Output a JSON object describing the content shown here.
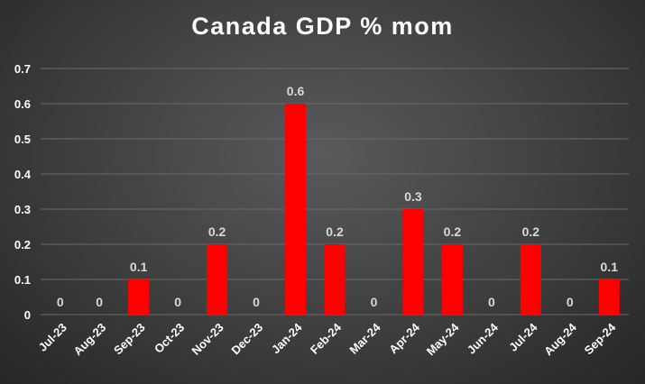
{
  "chart_data": {
    "type": "bar",
    "title": "Canada GDP % mom",
    "xlabel": "",
    "ylabel": "",
    "categories": [
      "Jul-23",
      "Aug-23",
      "Sep-23",
      "Oct-23",
      "Nov-23",
      "Dec-23",
      "Jan-24",
      "Feb-24",
      "Mar-24",
      "Apr-24",
      "May-24",
      "Jun-24",
      "Jul-24",
      "Aug-24",
      "Sep-24"
    ],
    "values": [
      0,
      0,
      0.1,
      0,
      0.2,
      0,
      0.6,
      0.2,
      0,
      0.3,
      0.2,
      0,
      0.2,
      0,
      0.1
    ],
    "ylim": [
      0,
      0.7
    ],
    "yticks": [
      0,
      0.1,
      0.2,
      0.3,
      0.4,
      0.5,
      0.6,
      0.7
    ],
    "grid": true,
    "bar_color": "#ff0000",
    "label_color": "#d9d9d9"
  }
}
